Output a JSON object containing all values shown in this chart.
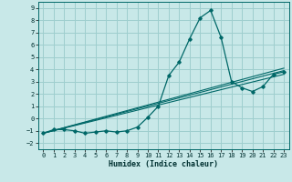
{
  "xlabel": "Humidex (Indice chaleur)",
  "xlim": [
    -0.5,
    23.5
  ],
  "ylim": [
    -2.5,
    9.5
  ],
  "xticks": [
    0,
    1,
    2,
    3,
    4,
    5,
    6,
    7,
    8,
    9,
    10,
    11,
    12,
    13,
    14,
    15,
    16,
    17,
    18,
    19,
    20,
    21,
    22,
    23
  ],
  "yticks": [
    -2,
    -1,
    0,
    1,
    2,
    3,
    4,
    5,
    6,
    7,
    8,
    9
  ],
  "background_color": "#c8e8e8",
  "grid_color": "#9ecece",
  "line_color": "#006868",
  "line1_x": [
    0,
    1,
    2,
    3,
    4,
    5,
    6,
    7,
    8,
    9,
    10,
    11,
    12,
    13,
    14,
    15,
    16,
    17,
    18,
    19,
    20,
    21,
    22,
    23
  ],
  "line1_y": [
    -1.2,
    -0.9,
    -0.9,
    -1.0,
    -1.2,
    -1.1,
    -1.0,
    -1.1,
    -1.0,
    -0.7,
    0.1,
    1.0,
    3.5,
    4.6,
    6.5,
    8.2,
    8.8,
    6.6,
    3.0,
    2.5,
    2.2,
    2.6,
    3.6,
    3.8
  ],
  "line2_x": [
    0,
    23
  ],
  "line2_y": [
    -1.2,
    3.9
  ],
  "line3_x": [
    0,
    23
  ],
  "line3_y": [
    -1.2,
    3.6
  ],
  "line4_x": [
    0,
    23
  ],
  "line4_y": [
    -1.2,
    4.1
  ]
}
